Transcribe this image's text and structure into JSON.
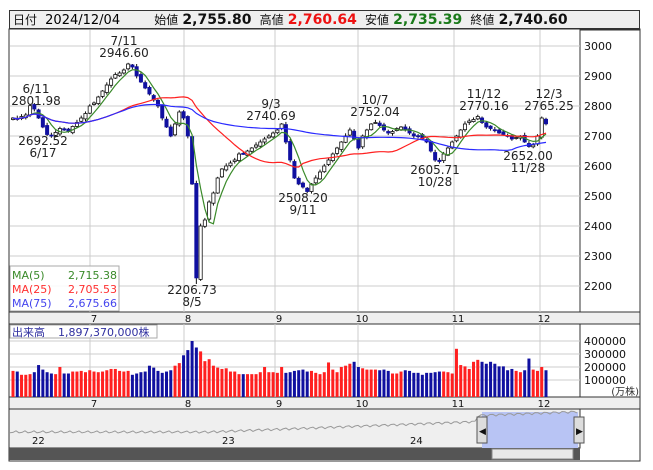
{
  "header": {
    "date_label": "日付",
    "date": "2024/12/04",
    "open_label": "始値",
    "open": "2,755.80",
    "high_label": "高値",
    "high": "2,760.64",
    "low_label": "安値",
    "low": "2,735.39",
    "close_label": "終値",
    "close": "2,740.60"
  },
  "colors": {
    "up": "#ffffff",
    "down": "#1010a0",
    "vol_up": "#ff2020",
    "vol_down": "#1010a0",
    "ma5": "#3a8a2a",
    "ma25": "#ff2020",
    "ma75": "#2a2aff",
    "nav_fill": "#b8c4f4"
  },
  "legend": [
    {
      "name": "MA(5)",
      "value": "2,715.38",
      "color": "#3a8a2a"
    },
    {
      "name": "MA(25)",
      "value": "2,705.53",
      "color": "#ff3030"
    },
    {
      "name": "MA(75)",
      "value": "2,675.66",
      "color": "#4444ee"
    }
  ],
  "volume_label": "出来高",
  "volume_value": "1,897,370,000株",
  "volume_unit": "(万株)",
  "annotations": [
    {
      "text": "6/11",
      "text2": "2801.98"
    },
    {
      "text": "2692.52",
      "text2": "6/17"
    },
    {
      "text": "7/11",
      "text2": "2946.60"
    },
    {
      "text": "2206.73",
      "text2": "8/5"
    },
    {
      "text": "9/3",
      "text2": "2740.69"
    },
    {
      "text": "2508.20",
      "text2": "9/11"
    },
    {
      "text": "10/7",
      "text2": "2752.04"
    },
    {
      "text": "2605.71",
      "text2": "10/28"
    },
    {
      "text": "11/12",
      "text2": "2770.16"
    },
    {
      "text": "2652.00",
      "text2": "11/28"
    },
    {
      "text": "12/3",
      "text2": "2765.25"
    }
  ],
  "navigator": {
    "years": [
      "22",
      "23",
      "24"
    ]
  },
  "chart_data": {
    "type": "candlestick",
    "price_ticks": [
      3000,
      2900,
      2800,
      2700,
      2600,
      2500,
      2400,
      2300,
      2200
    ],
    "ylim": [
      2150,
      3010
    ],
    "month_labels": [
      "7",
      "8",
      "9",
      "10",
      "11",
      "12"
    ],
    "volume_ticks": [
      "400000",
      "300000",
      "200000",
      "100000"
    ],
    "closes": [
      2760,
      2755,
      2765,
      2770,
      2801,
      2790,
      2760,
      2730,
      2705,
      2700,
      2712,
      2725,
      2720,
      2715,
      2732,
      2745,
      2760,
      2775,
      2800,
      2810,
      2830,
      2850,
      2870,
      2890,
      2905,
      2910,
      2920,
      2940,
      2930,
      2900,
      2880,
      2860,
      2840,
      2820,
      2800,
      2760,
      2730,
      2700,
      2740,
      2780,
      2760,
      2700,
      2540,
      2227,
      2400,
      2420,
      2480,
      2510,
      2560,
      2590,
      2600,
      2610,
      2620,
      2640,
      2640,
      2650,
      2660,
      2670,
      2680,
      2690,
      2700,
      2710,
      2720,
      2740,
      2680,
      2620,
      2560,
      2540,
      2530,
      2515,
      2540,
      2560,
      2580,
      2600,
      2620,
      2640,
      2660,
      2680,
      2700,
      2720,
      2690,
      2660,
      2700,
      2720,
      2740,
      2745,
      2735,
      2720,
      2710,
      2715,
      2725,
      2730,
      2720,
      2710,
      2700,
      2700,
      2690,
      2680,
      2650,
      2620,
      2615,
      2640,
      2660,
      2680,
      2700,
      2720,
      2740,
      2750,
      2755,
      2765,
      2745,
      2730,
      2725,
      2720,
      2710,
      2705,
      2700,
      2690,
      2695,
      2700,
      2680,
      2665,
      2670,
      2700,
      2760,
      2740.6
    ],
    "volumes": [
      170,
      165,
      140,
      140,
      145,
      160,
      215,
      180,
      160,
      150,
      145,
      200,
      150,
      150,
      165,
      165,
      170,
      160,
      175,
      165,
      160,
      165,
      175,
      185,
      185,
      170,
      165,
      170,
      140,
      150,
      160,
      165,
      210,
      195,
      170,
      155,
      165,
      175,
      210,
      230,
      290,
      330,
      400,
      350,
      320,
      245,
      260,
      210,
      195,
      185,
      190,
      165,
      165,
      145,
      145,
      145,
      145,
      145,
      160,
      200,
      160,
      160,
      155,
      200,
      155,
      160,
      170,
      175,
      180,
      165,
      170,
      155,
      145,
      160,
      235,
      180,
      160,
      200,
      210,
      225,
      240,
      200,
      190,
      180,
      180,
      180,
      175,
      180,
      170,
      150,
      150,
      165,
      175,
      170,
      155,
      155,
      140,
      155,
      155,
      160,
      165,
      165,
      160,
      150,
      340,
      215,
      205,
      185,
      240,
      255,
      240,
      225,
      240,
      225,
      205,
      205,
      175,
      185,
      170,
      160,
      175,
      265,
      180,
      170,
      200,
      175
    ]
  }
}
